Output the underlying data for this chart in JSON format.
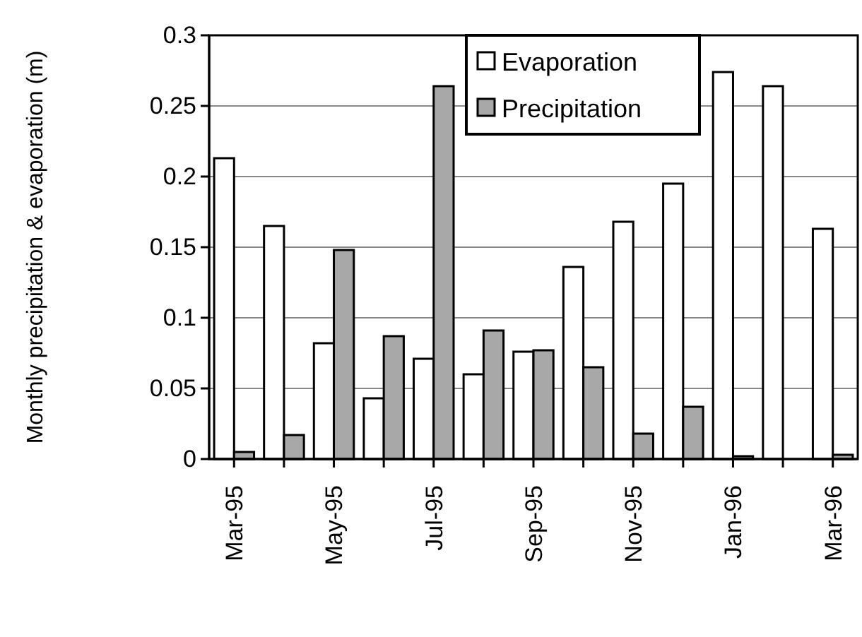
{
  "chart_data": {
    "type": "bar",
    "ylabel": "Monthly precipitation & evaporation (m)",
    "categories": [
      "Mar-95",
      null,
      "May-95",
      null,
      "Jul-95",
      null,
      "Sep-95",
      null,
      "Nov-95",
      null,
      "Jan-96",
      null,
      "Mar-96"
    ],
    "series": [
      {
        "name": "Evaporation",
        "color": "#ffffff",
        "values": [
          0.213,
          0.165,
          0.082,
          0.043,
          0.071,
          0.06,
          0.076,
          0.136,
          0.168,
          0.195,
          0.274,
          0.264,
          0.163
        ]
      },
      {
        "name": "Precipitation",
        "color": "#a8a8a8",
        "values": [
          0.005,
          0.017,
          0.148,
          0.087,
          0.264,
          0.091,
          0.077,
          0.065,
          0.018,
          0.037,
          0.002,
          0,
          0.003
        ]
      }
    ],
    "ylim": [
      0,
      0.3
    ],
    "yticks": [
      0,
      0.05,
      0.1,
      0.15,
      0.2,
      0.25,
      0.3
    ],
    "grid": "y",
    "legend": "top right"
  }
}
